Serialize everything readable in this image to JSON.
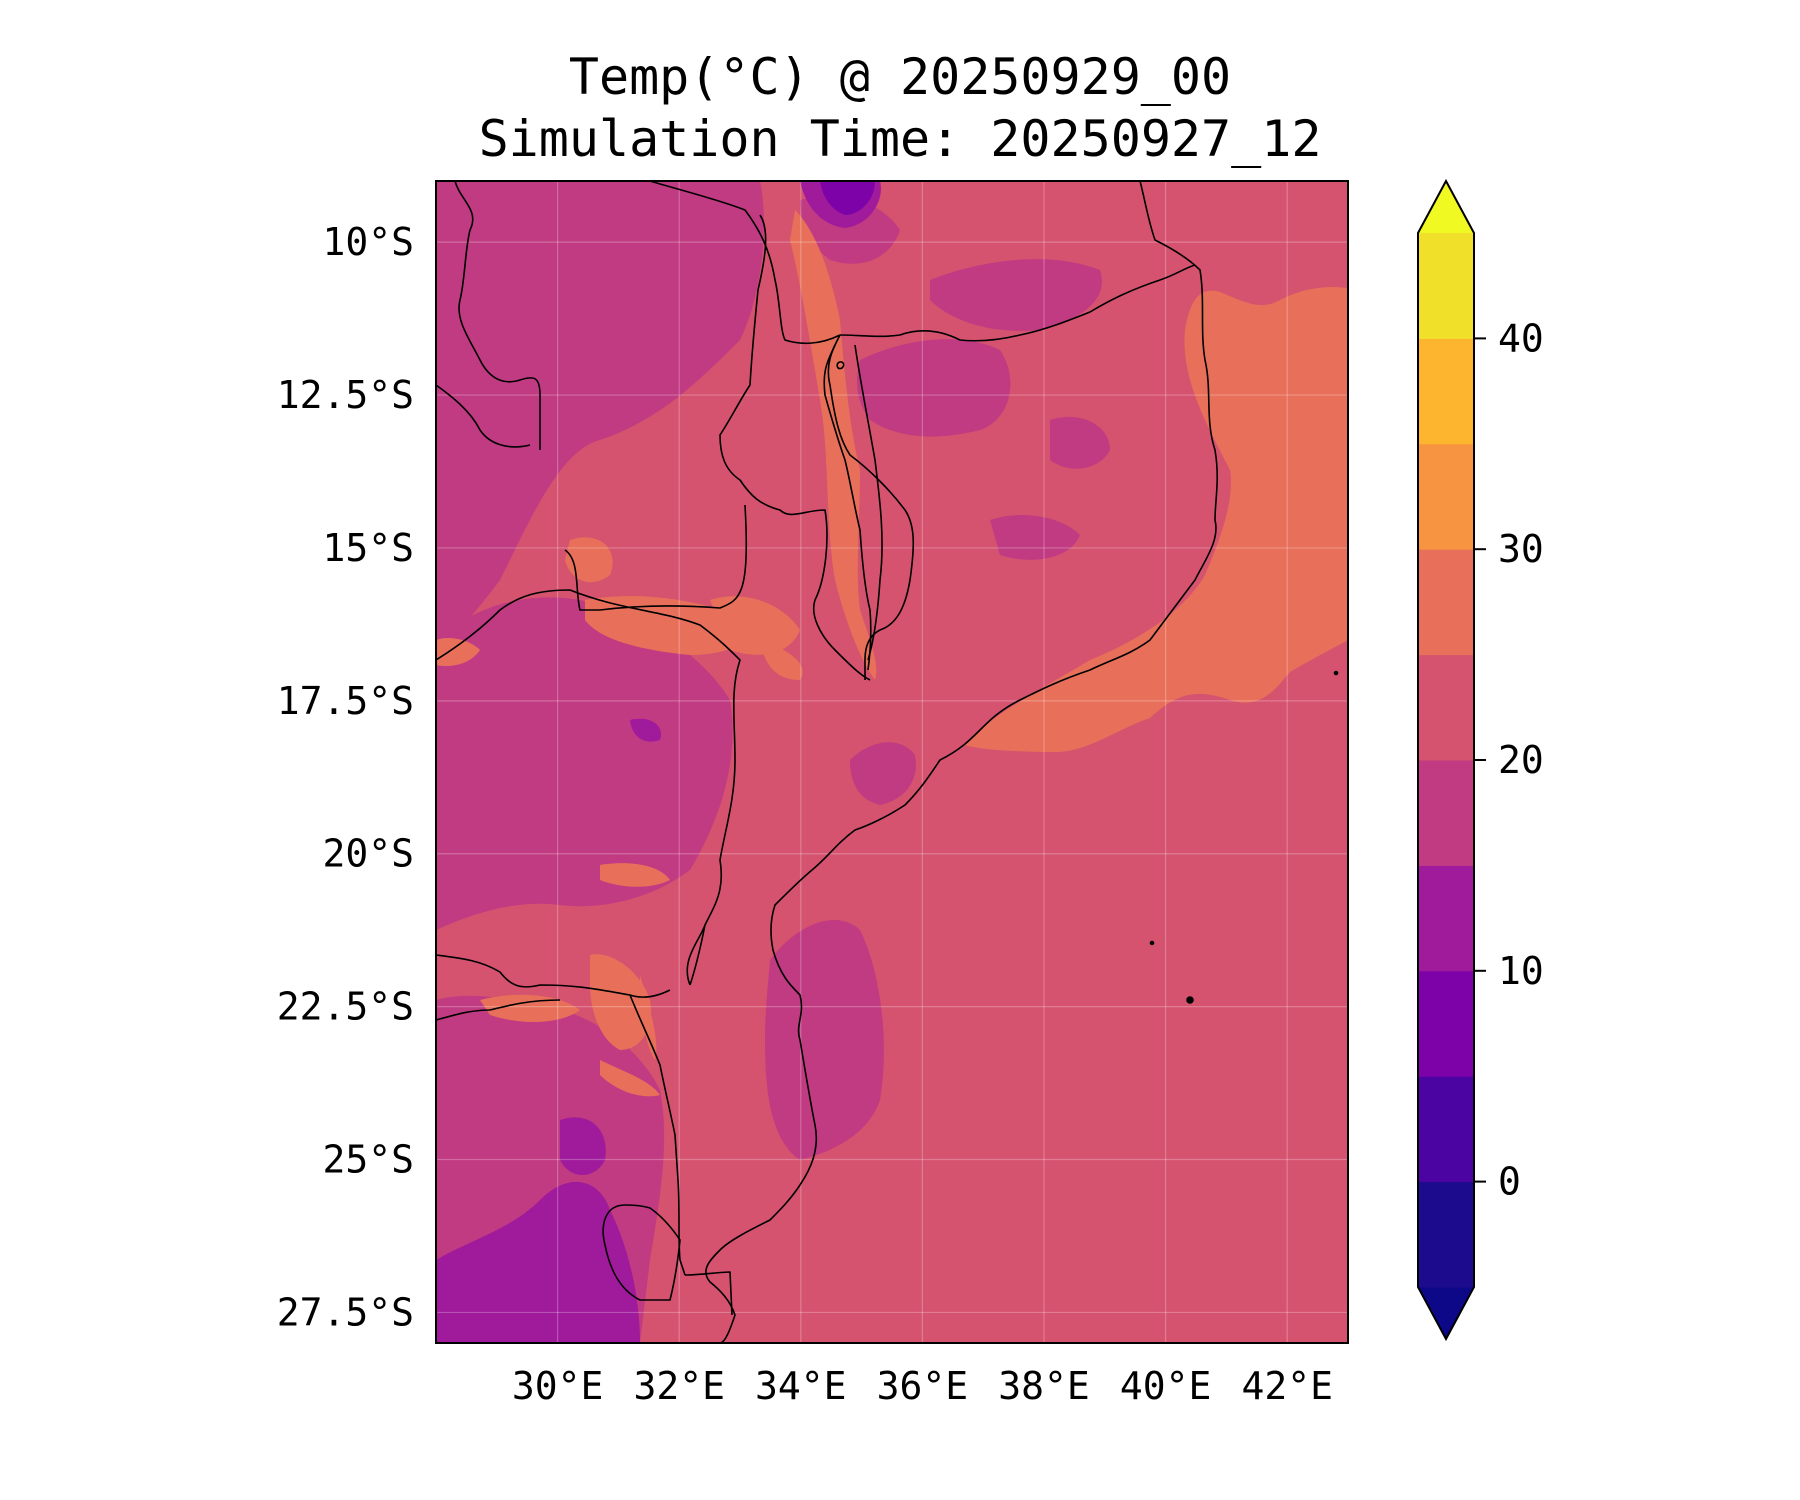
{
  "title_line_1": "Temp(°C) @ 20250929_00",
  "title_line_2": "Simulation Time: 20250927_12",
  "map": {
    "region": "Mozambique and surrounding southeast Africa",
    "field": "2m air temperature",
    "lat_range": [
      -28.0,
      -9.0
    ],
    "lon_range": [
      28.0,
      43.0
    ],
    "lat_ticks": [
      {
        "value": -10.0,
        "label": "10°S"
      },
      {
        "value": -12.5,
        "label": "12.5°S"
      },
      {
        "value": -15.0,
        "label": "15°S"
      },
      {
        "value": -17.5,
        "label": "17.5°S"
      },
      {
        "value": -20.0,
        "label": "20°S"
      },
      {
        "value": -22.5,
        "label": "22.5°S"
      },
      {
        "value": -25.0,
        "label": "25°S"
      },
      {
        "value": -27.5,
        "label": "27.5°S"
      }
    ],
    "lon_ticks": [
      {
        "value": 30,
        "label": "30°E"
      },
      {
        "value": 32,
        "label": "32°E"
      },
      {
        "value": 34,
        "label": "34°E"
      },
      {
        "value": 36,
        "label": "36°E"
      },
      {
        "value": 38,
        "label": "38°E"
      },
      {
        "value": 40,
        "label": "40°E"
      },
      {
        "value": 42,
        "label": "42°E"
      }
    ],
    "colorbar": {
      "colormap": "plasma",
      "extend": "both",
      "levels": [
        -5,
        0,
        5,
        10,
        15,
        20,
        25,
        30,
        35,
        40,
        45
      ],
      "bin_colors": [
        "#1c0c8d",
        "#4b03a1",
        "#7d03a8",
        "#a01a9c",
        "#c13b82",
        "#d5536f",
        "#e8705a",
        "#f79441",
        "#fdb42f",
        "#f1e02a"
      ],
      "under_color": "#0d0887",
      "over_color": "#f0f921",
      "tick_labels": [
        {
          "value": 0,
          "label": "0"
        },
        {
          "value": 10,
          "label": "10"
        },
        {
          "value": 20,
          "label": "20"
        },
        {
          "value": 30,
          "label": "30"
        },
        {
          "value": 40,
          "label": "40"
        }
      ]
    },
    "background_color": "#d5536f",
    "ocean_warm_color": "#e8705a",
    "land_cool_color": "#c13b82",
    "land_cold_color": "#a01a9c",
    "land_coldest_color": "#7d03a8",
    "land_warm_color": "#e8705a",
    "border_color": "#000000"
  }
}
